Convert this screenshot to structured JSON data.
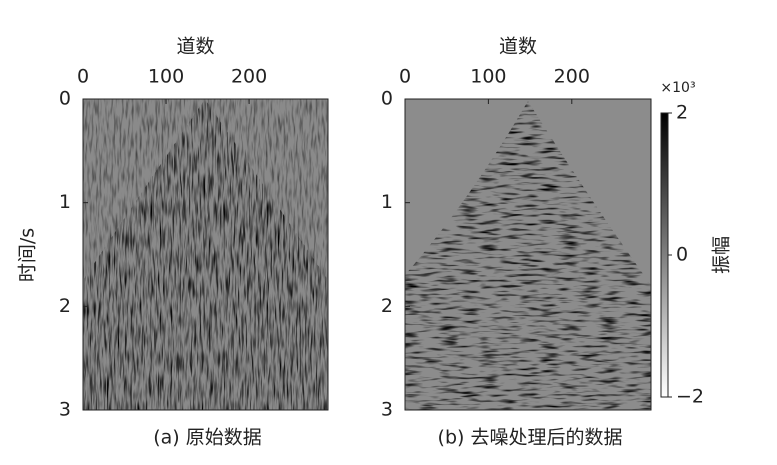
{
  "chart_data": [
    {
      "type": "heatmap",
      "caption": "(a) 原始数据",
      "xlabel": "道数",
      "ylabel": "时间/s",
      "xlim": [
        0,
        295
      ],
      "xticks": [
        0,
        100,
        200
      ],
      "ylim": [
        0,
        3
      ],
      "yticks": [
        0,
        1,
        2,
        3
      ]
    },
    {
      "type": "heatmap",
      "caption": "(b) 去噪处理后的数据",
      "xlabel": "道数",
      "xlim": [
        0,
        295
      ],
      "xticks": [
        0,
        100,
        200
      ],
      "ylim": [
        0,
        3
      ],
      "yticks": [
        0,
        1,
        2,
        3
      ],
      "zlim": [
        -2,
        2
      ],
      "zticks": [
        {
          "value": -2,
          "label": "−2"
        },
        0,
        2
      ],
      "zunit": "×10³",
      "zlabel": "振幅"
    }
  ]
}
